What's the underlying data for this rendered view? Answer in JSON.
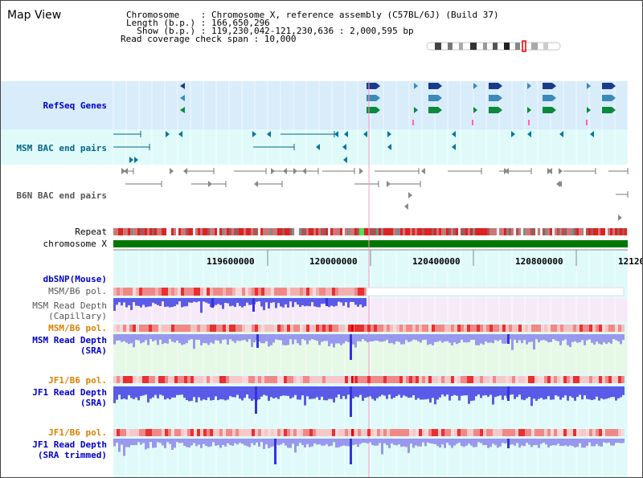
{
  "title": "Map View",
  "info": {
    "l1": "Chromosome    : Chromosome X, reference assembly (C57BL/6J) (Build 37)",
    "l2": "Length (b.p.) : 166,650,296",
    "l3": "  Show (b.p.) : 119,230,042-121,230,636 : 2,000,595 bp",
    "l4": "Read coverage check span : 10,000"
  },
  "tracks": {
    "refseq": "RefSeq Genes",
    "msm_bac": "MSM BAC end pairs",
    "b6n_bac": "B6N BAC end pairs",
    "repeat": "Repeat",
    "chromosome": "chromosome X",
    "dbsnp": "dbSNP(Mouse)",
    "msm_b6_pol": "MSM/B6 pol.",
    "msm_depth_cap_1": "MSM Read Depth",
    "msm_depth_cap_2": "(Capillary)",
    "msm_b6_pol2": "MSM/B6 pol.",
    "msm_depth_sra_1": "MSM Read Depth",
    "msm_depth_sra_2": "(SRA)",
    "jf1_b6_pol": "JF1/B6 pol.",
    "jf1_depth_sra_1": "JF1 Read Depth",
    "jf1_depth_sra_2": "(SRA)",
    "jf1_b6_pol2": "JF1/B6 pol.",
    "jf1_depth_trim_1": "JF1 Read Depth",
    "jf1_depth_trim_2": "(SRA trimmed)"
  },
  "ruler": {
    "ticks": [
      "119600000",
      "120000000",
      "120400000",
      "120800000",
      "12120"
    ]
  },
  "colors": {
    "refseq_bg": "#d8ecfa",
    "msm_bac_bg": "#e0fafa",
    "b6n_bg": "#f4f4f8",
    "chrom": "#007700",
    "depth": "#5050e0",
    "pol": "#e04040",
    "label_blue": "#0000cc",
    "label_orange": "#e08000"
  }
}
